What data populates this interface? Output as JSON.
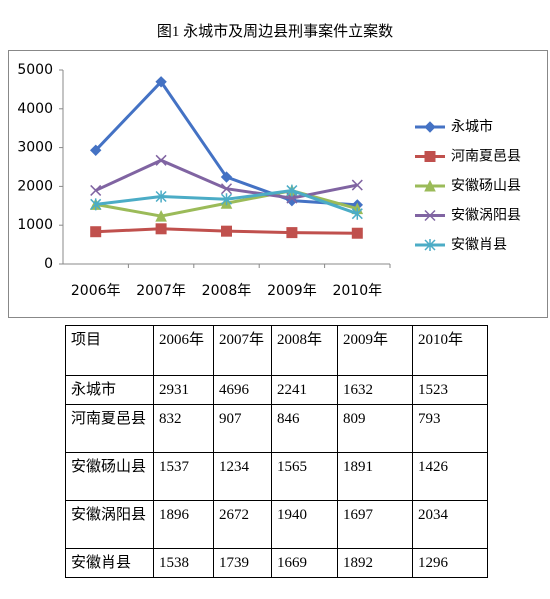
{
  "caption": "图1  永城市及周边县刑事案件立案数",
  "chart_data": {
    "type": "line",
    "categories": [
      "2006年",
      "2007年",
      "2008年",
      "2009年",
      "2010年"
    ],
    "series": [
      {
        "name": "永城市",
        "color": "#4472c4",
        "marker": "diamond",
        "values": [
          2931,
          4696,
          2241,
          1632,
          1523
        ]
      },
      {
        "name": "河南夏邑县",
        "color": "#c0504d",
        "marker": "square",
        "values": [
          832,
          907,
          846,
          809,
          793
        ]
      },
      {
        "name": "安徽砀山县",
        "color": "#9bbb59",
        "marker": "triangle",
        "values": [
          1537,
          1234,
          1565,
          1891,
          1426
        ]
      },
      {
        "name": "安徽涡阳县",
        "color": "#8064a2",
        "marker": "x",
        "values": [
          1896,
          2672,
          1940,
          1697,
          2034
        ]
      },
      {
        "name": "安徽肖县",
        "color": "#4bacc6",
        "marker": "asterisk",
        "values": [
          1538,
          1739,
          1669,
          1892,
          1296
        ]
      }
    ],
    "ylim": [
      0,
      5000
    ],
    "yticks": [
      0,
      1000,
      2000,
      3000,
      4000,
      5000
    ],
    "grid": false,
    "legend": "right"
  },
  "table": {
    "header": [
      "项目",
      "2006年",
      "2007年",
      "2008年",
      "2009年",
      "2010年"
    ],
    "rows": [
      [
        "永城市",
        "2931",
        "4696",
        "2241",
        "1632",
        "1523"
      ],
      [
        "河南夏邑县",
        "832",
        "907",
        "846",
        "809",
        "793"
      ],
      [
        "安徽砀山县",
        "1537",
        "1234",
        "1565",
        "1891",
        "1426"
      ],
      [
        "安徽涡阳县",
        "1896",
        "2672",
        "1940",
        "1697",
        "2034"
      ],
      [
        "安徽肖县",
        "1538",
        "1739",
        "1669",
        "1892",
        "1296"
      ]
    ]
  }
}
